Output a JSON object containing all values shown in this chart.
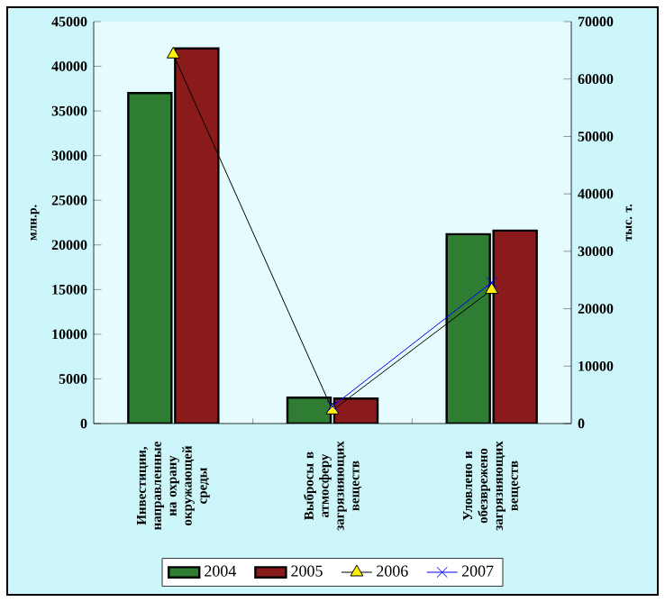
{
  "chart_data": {
    "type": "bar",
    "ylabel": "млн.р.",
    "y2label": "тыс. т.",
    "categories": [
      "Инвестиции, направленные на охрану окружающей среды",
      "Выбросы в атмосферу загрязняющих веществ",
      "Уловлено и обезврежено загрязняющих веществ"
    ],
    "series": [
      {
        "name": "2004",
        "color": "#2e7d32",
        "values": [
          37000,
          2900,
          21200
        ]
      },
      {
        "name": "2005",
        "color": "#8b1a1a",
        "values": [
          42000,
          2800,
          21600
        ]
      },
      {
        "name": "2006",
        "type": "line",
        "axis": "y2",
        "color": "#000000",
        "marker": "triangle",
        "values": [
          64300,
          2300,
          23300
        ]
      },
      {
        "name": "2007",
        "type": "line",
        "axis": "y2",
        "color": "#0000ff",
        "marker": "cross",
        "values": [
          null,
          3000,
          24600
        ]
      }
    ],
    "ylim": [
      0,
      45000
    ],
    "yticks": [
      0,
      5000,
      10000,
      15000,
      20000,
      25000,
      30000,
      35000,
      40000,
      45000
    ],
    "y2lim": [
      0,
      70000
    ],
    "y2ticks": [
      0,
      10000,
      20000,
      30000,
      40000,
      50000,
      60000,
      70000
    ],
    "legend": "bottom"
  }
}
